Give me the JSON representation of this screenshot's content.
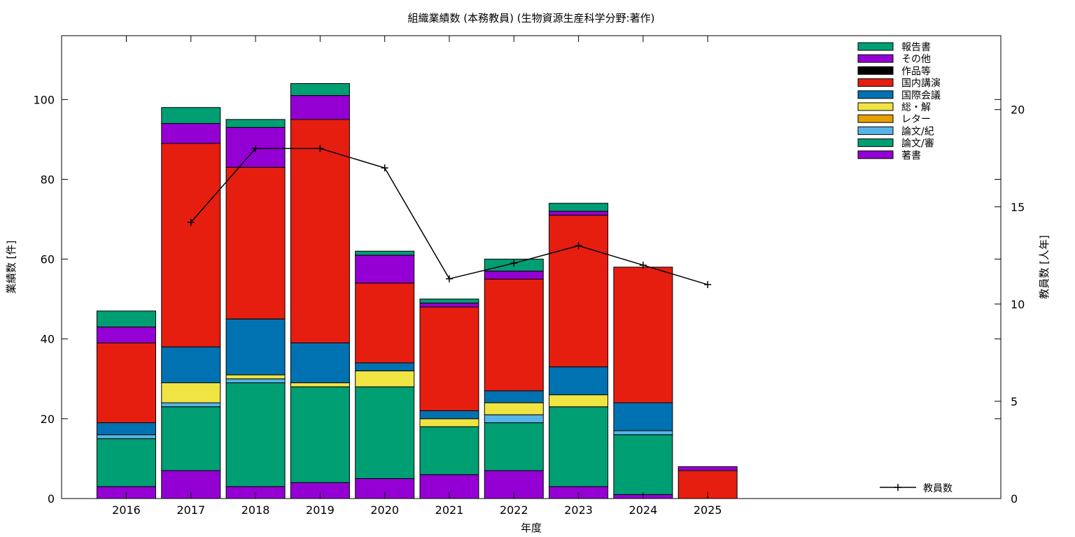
{
  "chart_data": {
    "type": "bar",
    "title": "組織業績数 (本務教員) (生物資源生産科学分野:著作)",
    "xlabel": "年度",
    "ylabel": "業績数 [件]",
    "y2label": "教員数 [人年]",
    "ylim": [
      0,
      116
    ],
    "y2lim": [
      0,
      23.8
    ],
    "yticks": [
      0,
      20,
      40,
      60,
      80,
      100
    ],
    "y2ticks": [
      0,
      5,
      10,
      15,
      20
    ],
    "categories": [
      "2016",
      "2017",
      "2018",
      "2019",
      "2020",
      "2021",
      "2022",
      "2023",
      "2024",
      "2025"
    ],
    "stacked": true,
    "legend_position": "top-right",
    "series": [
      {
        "name": "著書",
        "color": "#9400D3",
        "values": [
          3,
          7,
          3,
          4,
          5,
          6,
          7,
          3,
          1,
          0
        ]
      },
      {
        "name": "論文/審",
        "color": "#009E73",
        "values": [
          12,
          16,
          26,
          24,
          23,
          12,
          12,
          20,
          15,
          0
        ]
      },
      {
        "name": "論文/紀",
        "color": "#56B4E9",
        "values": [
          1,
          1,
          1,
          0,
          0,
          0,
          2,
          0,
          1,
          0
        ]
      },
      {
        "name": "レター",
        "color": "#E69F00",
        "values": [
          0,
          0,
          0,
          0,
          0,
          0,
          0,
          0,
          0,
          0
        ]
      },
      {
        "name": "総・解",
        "color": "#F0E442",
        "values": [
          0,
          5,
          1,
          1,
          4,
          2,
          3,
          3,
          0,
          0
        ]
      },
      {
        "name": "国際会議",
        "color": "#0072B2",
        "values": [
          3,
          9,
          14,
          10,
          2,
          2,
          3,
          7,
          7,
          0
        ]
      },
      {
        "name": "国内講演",
        "color": "#E51E10",
        "values": [
          20,
          51,
          38,
          56,
          20,
          26,
          28,
          38,
          34,
          7
        ]
      },
      {
        "name": "作品等",
        "color": "#000000",
        "values": [
          0,
          0,
          0,
          0,
          0,
          0,
          0,
          0,
          0,
          0
        ]
      },
      {
        "name": "その他",
        "color": "#9400D3",
        "values": [
          4,
          5,
          10,
          6,
          7,
          1,
          2,
          1,
          0,
          1
        ]
      },
      {
        "name": "報告書",
        "color": "#009E73",
        "values": [
          4,
          4,
          2,
          3,
          1,
          1,
          3,
          2,
          0,
          0
        ]
      }
    ],
    "line": {
      "name": "教員数",
      "color": "#000000",
      "axis": "right",
      "categories": [
        "2017",
        "2018",
        "2019",
        "2020",
        "2021",
        "2022",
        "2023",
        "2024",
        "2025"
      ],
      "values": [
        14.2,
        18,
        18,
        17,
        11.3,
        12.1,
        13,
        12,
        11
      ]
    }
  }
}
